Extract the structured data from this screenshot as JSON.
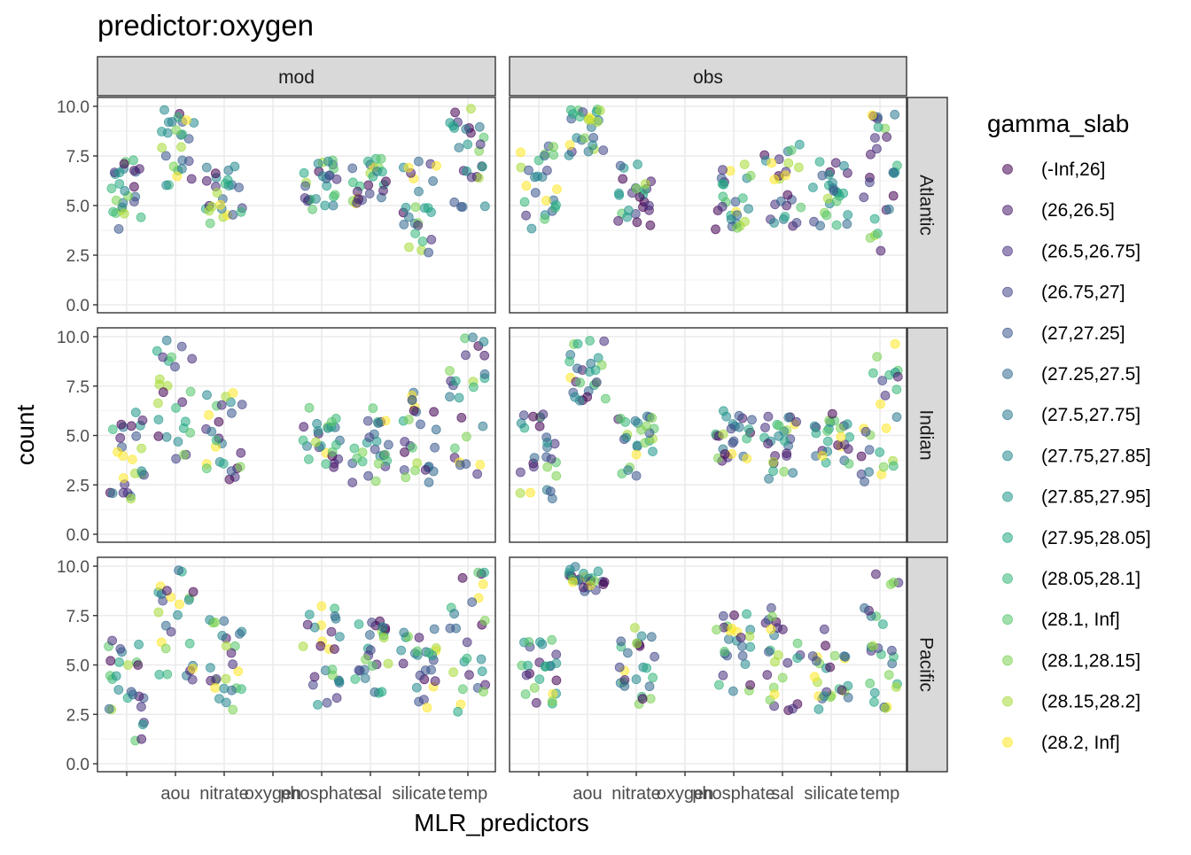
{
  "title": "predictor:oxygen",
  "chart_data": {
    "type": "scatter",
    "title": "predictor:oxygen",
    "xlabel": "MLR_predictors",
    "ylabel": "count",
    "x_categories": [
      "",
      "aou",
      "nitrate",
      "oxygen",
      "phosphate",
      "sal",
      "silicate",
      "temp"
    ],
    "ylim": [
      0,
      10
    ],
    "y_ticks": [
      "0.0",
      "2.5",
      "5.0",
      "7.5",
      "10.0"
    ],
    "facet_columns": [
      "mod",
      "obs"
    ],
    "facet_rows": [
      "Atlantic",
      "Indian",
      "Pacific"
    ],
    "jitter": true,
    "grid": true,
    "legend": {
      "title": "gamma_slab",
      "position": "right",
      "entries": [
        "(-Inf,26]",
        "(26,26.5]",
        "(26.5,26.75]",
        "(26.75,27]",
        "(27,27.25]",
        "(27.25,27.5]",
        "(27.5,27.75]",
        "(27.75,27.85]",
        "(27.85,27.95]",
        "(27.95,28.05]",
        "(28.05,28.1]",
        "(28.1, Inf]",
        "(28.1,28.15]",
        "(28.15,28.2]",
        "(28.2, Inf]"
      ],
      "colors": [
        "#440154",
        "#481A6C",
        "#472F7D",
        "#414487",
        "#39568C",
        "#31688E",
        "#2A788E",
        "#23888E",
        "#1F988B",
        "#22A884",
        "#35B779",
        "#54C568",
        "#7AD151",
        "#A5DB36",
        "#FDE725"
      ]
    },
    "panels": [
      {
        "column": "mod",
        "row": "Atlantic",
        "groups": [
          {
            "x": "",
            "y_range": [
              3.8,
              7.3
            ]
          },
          {
            "x": "aou",
            "y_range": [
              6.0,
              10.0
            ]
          },
          {
            "x": "nitrate",
            "y_range": [
              3.7,
              7.0
            ]
          },
          {
            "x": "phosphate",
            "y_range": [
              4.7,
              7.3
            ]
          },
          {
            "x": "sal",
            "y_range": [
              5.1,
              7.4
            ]
          },
          {
            "x": "silicate",
            "y_range": [
              2.6,
              7.4
            ]
          },
          {
            "x": "temp",
            "y_range": [
              4.8,
              10.0
            ]
          }
        ]
      },
      {
        "column": "obs",
        "row": "Atlantic",
        "groups": [
          {
            "x": "",
            "y_range": [
              3.8,
              8.0
            ]
          },
          {
            "x": "aou",
            "y_range": [
              7.5,
              10.0
            ]
          },
          {
            "x": "nitrate",
            "y_range": [
              3.8,
              7.3
            ]
          },
          {
            "x": "phosphate",
            "y_range": [
              3.8,
              7.3
            ]
          },
          {
            "x": "sal",
            "y_range": [
              3.8,
              8.2
            ]
          },
          {
            "x": "silicate",
            "y_range": [
              3.8,
              7.3
            ]
          },
          {
            "x": "temp",
            "y_range": [
              2.7,
              10.0
            ]
          }
        ]
      },
      {
        "column": "mod",
        "row": "Indian",
        "groups": [
          {
            "x": "",
            "y_range": [
              1.7,
              6.4
            ]
          },
          {
            "x": "aou",
            "y_range": [
              3.8,
              10.0
            ]
          },
          {
            "x": "nitrate",
            "y_range": [
              2.7,
              7.3
            ]
          },
          {
            "x": "phosphate",
            "y_range": [
              3.2,
              6.4
            ]
          },
          {
            "x": "sal",
            "y_range": [
              2.6,
              6.4
            ]
          },
          {
            "x": "silicate",
            "y_range": [
              2.6,
              7.4
            ]
          },
          {
            "x": "temp",
            "y_range": [
              2.6,
              10.0
            ]
          }
        ]
      },
      {
        "column": "obs",
        "row": "Indian",
        "groups": [
          {
            "x": "",
            "y_range": [
              1.6,
              6.2
            ]
          },
          {
            "x": "aou",
            "y_range": [
              6.7,
              10.0
            ]
          },
          {
            "x": "nitrate",
            "y_range": [
              2.9,
              6.3
            ]
          },
          {
            "x": "phosphate",
            "y_range": [
              3.6,
              6.3
            ]
          },
          {
            "x": "sal",
            "y_range": [
              2.8,
              6.3
            ]
          },
          {
            "x": "silicate",
            "y_range": [
              3.5,
              6.1
            ]
          },
          {
            "x": "temp",
            "y_range": [
              2.6,
              10.0
            ]
          }
        ]
      },
      {
        "column": "mod",
        "row": "Pacific",
        "groups": [
          {
            "x": "",
            "y_range": [
              1.0,
              6.3
            ]
          },
          {
            "x": "aou",
            "y_range": [
              4.0,
              10.0
            ]
          },
          {
            "x": "nitrate",
            "y_range": [
              2.7,
              7.3
            ]
          },
          {
            "x": "phosphate",
            "y_range": [
              2.6,
              8.1
            ]
          },
          {
            "x": "sal",
            "y_range": [
              3.2,
              7.3
            ]
          },
          {
            "x": "silicate",
            "y_range": [
              2.7,
              7.0
            ]
          },
          {
            "x": "temp",
            "y_range": [
              2.6,
              10.0
            ]
          }
        ]
      },
      {
        "column": "obs",
        "row": "Pacific",
        "groups": [
          {
            "x": "",
            "y_range": [
              2.6,
              6.3
            ]
          },
          {
            "x": "aou",
            "y_range": [
              8.7,
              10.0
            ]
          },
          {
            "x": "nitrate",
            "y_range": [
              2.6,
              7.0
            ]
          },
          {
            "x": "phosphate",
            "y_range": [
              3.6,
              7.8
            ]
          },
          {
            "x": "sal",
            "y_range": [
              2.7,
              7.9
            ]
          },
          {
            "x": "silicate",
            "y_range": [
              2.6,
              7.3
            ]
          },
          {
            "x": "temp",
            "y_range": [
              2.6,
              10.0
            ]
          }
        ]
      }
    ]
  }
}
